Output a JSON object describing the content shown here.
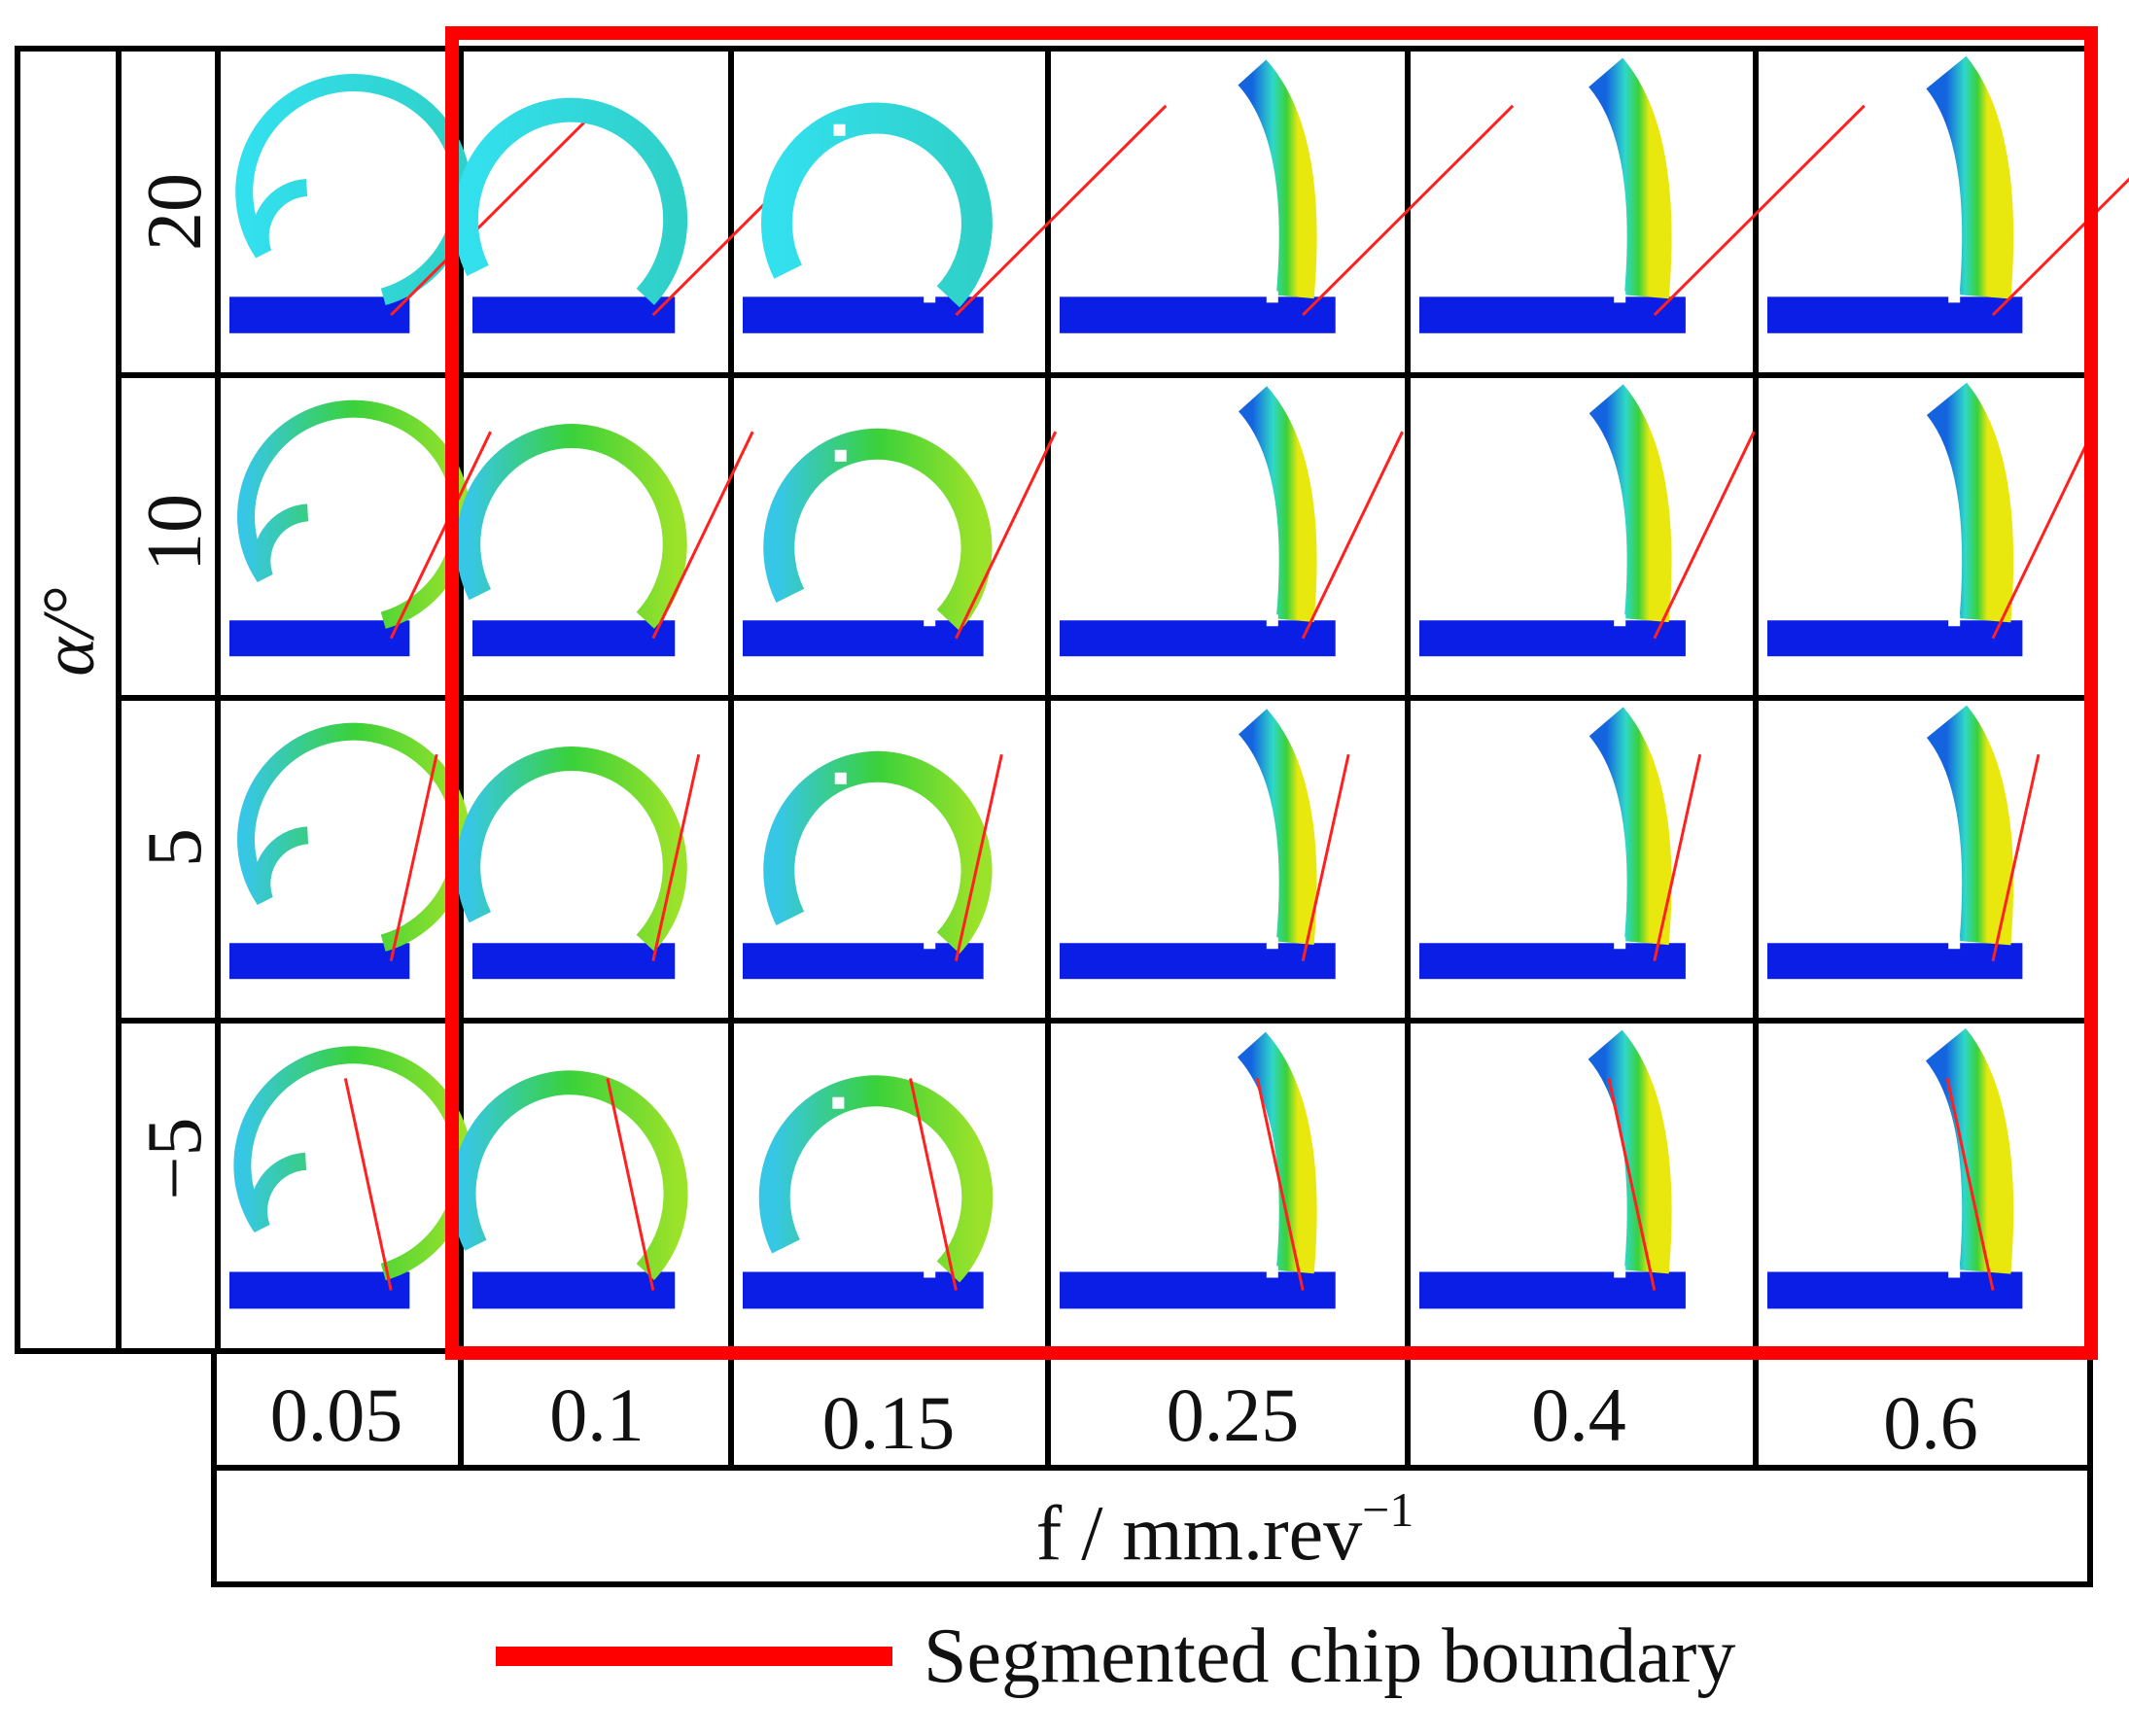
{
  "figure": {
    "y_axis_label": "α/°",
    "x_axis_label": "f / mm.rev",
    "x_axis_label_superscript": "−1",
    "rake_angles": [
      "20",
      "10",
      "5",
      "−5"
    ],
    "feed_rates": [
      "0.05",
      "0.1",
      "0.15",
      "0.25",
      "0.4",
      "0.6"
    ],
    "legend": {
      "label": "Segmented chip boundary",
      "color": "#ff0000"
    },
    "segmented_region": {
      "from_feed": "0.1",
      "to_feed": "0.6",
      "all_rake_angles": true
    },
    "colors": {
      "workpiece": "#0a1ee6",
      "chip_low": "#2fe4e4",
      "chip_mid": "#3ad13a",
      "chip_high": "#e8e80f",
      "chip_blue": "#1464e0",
      "tool_line": "#ff2020",
      "grid": "#000000"
    }
  }
}
